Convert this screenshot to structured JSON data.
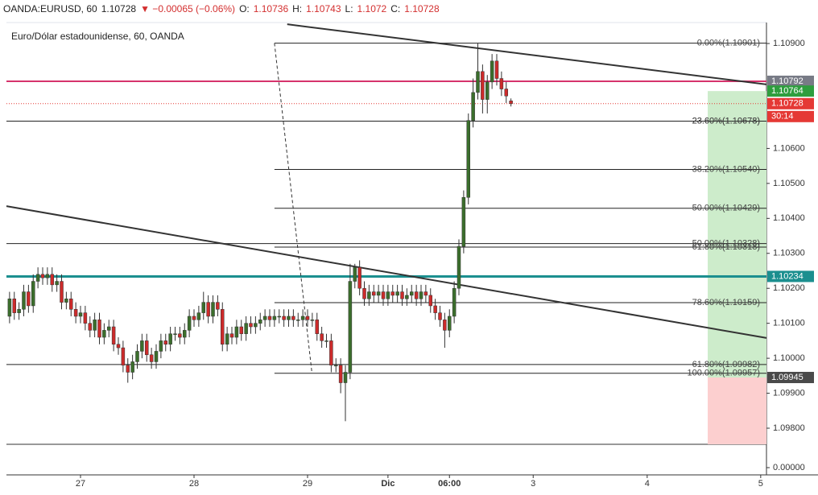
{
  "chart_data": {
    "type": "candlestick",
    "title": "Euro/Dólar estadounidense, 60, OANDA",
    "header": {
      "symbol": "OANDA:EURUSD, 60",
      "change": "▼ −0.00065 (−0.06%)",
      "o": "O:",
      "h": "H:",
      "l": "L:",
      "c": "C:"
    },
    "up_color": "#3b6e2c",
    "down_color": "#cc2b2b",
    "xlim": [
      -15.66,
      145.02
    ],
    "ylim": [
      1.09754,
      1.1096
    ],
    "xticks": [
      {
        "value": 0,
        "label": "27"
      },
      {
        "value": 24,
        "label": "28"
      },
      {
        "value": 48,
        "label": "29"
      },
      {
        "value": 65,
        "label": "Dic",
        "bold": true
      },
      {
        "value": 78,
        "label": "06:00",
        "bold": true
      },
      {
        "value": 95.7,
        "label": "3"
      },
      {
        "value": 119.8,
        "label": "4"
      },
      {
        "value": 143.8,
        "label": "5"
      }
    ],
    "yticks": [
      {
        "value": 1.109,
        "label": "1.10900"
      },
      {
        "value": 1.106,
        "label": "1.10600"
      },
      {
        "value": 1.105,
        "label": "1.10500"
      },
      {
        "value": 1.104,
        "label": "1.10400"
      },
      {
        "value": 1.103,
        "label": "1.10300"
      },
      {
        "value": 1.102,
        "label": "1.10200"
      },
      {
        "value": 1.101,
        "label": "1.10100"
      },
      {
        "value": 1.1,
        "label": "1.10000"
      },
      {
        "value": 1.099,
        "label": "1.09900"
      },
      {
        "value": 1.098,
        "label": "1.09800"
      }
    ],
    "lower_pane_tick": {
      "value": 0,
      "label": "0.00000"
    },
    "countdown": "30:14",
    "x": [
      -15,
      -14,
      -13,
      -12,
      -11,
      -10,
      -9,
      -8,
      -7,
      -6,
      -5,
      -4,
      -3,
      -2,
      -1,
      0,
      1,
      2,
      3,
      4,
      5,
      6,
      7,
      8,
      9,
      10,
      11,
      12,
      13,
      14,
      15,
      16,
      17,
      18,
      19,
      20,
      21,
      22,
      23,
      24,
      25,
      26,
      27,
      28,
      29,
      30,
      31,
      32,
      33,
      34,
      35,
      36,
      37,
      38,
      39,
      40,
      41,
      42,
      43,
      44,
      45,
      46,
      47,
      48,
      49,
      50,
      51,
      52,
      53,
      54,
      55,
      56,
      57,
      58,
      59,
      60,
      61,
      62,
      63,
      64,
      65,
      66,
      67,
      68,
      69,
      70,
      71,
      72,
      73,
      74,
      75,
      76,
      77,
      78,
      79,
      80,
      81,
      82,
      83,
      84,
      85,
      86,
      87,
      88,
      89,
      90,
      91
    ],
    "open": [
      1.1012,
      1.1017,
      1.1013,
      1.1014,
      1.1019,
      1.1015,
      1.1022,
      1.1024,
      1.1023,
      1.1024,
      1.1021,
      1.1022,
      1.1016,
      1.1017,
      1.1014,
      1.1012,
      1.1013,
      1.101,
      1.1008,
      1.1011,
      1.1006,
      1.1008,
      1.1009,
      1.1004,
      1.1003,
      1.0998,
      1.0996,
      1.0999,
      1.1002,
      1.1005,
      1.1001,
      1.0999,
      1.1002,
      1.1005,
      1.1004,
      1.1007,
      1.1007,
      1.1006,
      1.1008,
      1.1012,
      1.1011,
      1.1013,
      1.1016,
      1.1012,
      1.1016,
      1.1014,
      1.1004,
      1.1007,
      1.1006,
      1.1009,
      1.1007,
      1.101,
      1.1009,
      1.101,
      1.1011,
      1.1012,
      1.1011,
      1.1012,
      1.1012,
      1.1011,
      1.1012,
      1.1011,
      1.1011,
      1.1012,
      1.1011,
      1.1011,
      1.1007,
      1.1005,
      1.1005,
      1.0998,
      1.0998,
      1.0993,
      1.0996,
      1.1022,
      1.1026,
      1.102,
      1.1017,
      1.1019,
      1.1018,
      1.1019,
      1.1017,
      1.1019,
      1.1018,
      1.1019,
      1.1017,
      1.1018,
      1.1019,
      1.1017,
      1.1019,
      1.1018,
      1.1015,
      1.1013,
      1.1011,
      1.1008,
      1.1012,
      1.102,
      1.1032,
      1.1046,
      1.1068,
      1.1076,
      1.1082,
      1.1074,
      1.1079,
      1.1085,
      1.108,
      1.1077,
      1.10736
    ],
    "high": [
      1.1019,
      1.1019,
      1.1016,
      1.1021,
      1.1021,
      1.1024,
      1.1026,
      1.1026,
      1.1026,
      1.1026,
      1.1024,
      1.1024,
      1.1019,
      1.1019,
      1.1016,
      1.1015,
      1.1015,
      1.1012,
      1.1013,
      1.1013,
      1.101,
      1.1011,
      1.1011,
      1.1006,
      1.1005,
      1.1,
      1.1001,
      1.1004,
      1.1007,
      1.1007,
      1.1003,
      1.1004,
      1.1007,
      1.1007,
      1.1009,
      1.1009,
      1.1009,
      1.101,
      1.1014,
      1.1014,
      1.1015,
      1.1019,
      1.1018,
      1.1018,
      1.1018,
      1.1016,
      1.1009,
      1.1009,
      1.1011,
      1.1011,
      1.1012,
      1.1012,
      1.1012,
      1.1013,
      1.1014,
      1.1014,
      1.1014,
      1.1014,
      1.1014,
      1.1014,
      1.1014,
      1.1013,
      1.1014,
      1.1014,
      1.1013,
      1.1013,
      1.1009,
      1.1007,
      1.1007,
      1.1,
      1.1,
      1.0998,
      1.1027,
      1.1027,
      1.1028,
      1.1022,
      1.1021,
      1.1021,
      1.1021,
      1.1021,
      1.1021,
      1.1021,
      1.1021,
      1.1021,
      1.102,
      1.1021,
      1.1021,
      1.1021,
      1.1021,
      1.102,
      1.1017,
      1.1015,
      1.1013,
      1.1014,
      1.1022,
      1.1034,
      1.1048,
      1.107,
      1.108,
      1.109,
      1.1084,
      1.1081,
      1.1087,
      1.1087,
      1.1082,
      1.1079,
      1.10743
    ],
    "low": [
      1.101,
      1.1011,
      1.1011,
      1.1012,
      1.1013,
      1.1013,
      1.102,
      1.1021,
      1.1021,
      1.1019,
      1.1019,
      1.1014,
      1.1014,
      1.1012,
      1.101,
      1.101,
      1.1008,
      1.1006,
      1.1006,
      1.1004,
      1.1004,
      1.1006,
      1.1002,
      1.1001,
      1.0996,
      1.0993,
      1.0994,
      1.0997,
      1.1,
      1.0999,
      1.0997,
      1.0997,
      1.1,
      1.1002,
      1.1002,
      1.1005,
      1.1004,
      1.1004,
      1.1006,
      1.1009,
      1.1009,
      1.1011,
      1.101,
      1.101,
      1.1012,
      1.1002,
      1.1002,
      1.1004,
      1.1004,
      1.1005,
      1.1005,
      1.1007,
      1.1007,
      1.1008,
      1.1009,
      1.1009,
      1.1009,
      1.101,
      1.1009,
      1.1009,
      1.1009,
      1.1009,
      1.1009,
      1.1009,
      1.1009,
      1.1005,
      1.1003,
      1.1003,
      1.0996,
      1.0996,
      1.099,
      1.0982,
      1.0994,
      1.102,
      1.1018,
      1.1015,
      1.1015,
      1.1016,
      1.1016,
      1.1015,
      1.1015,
      1.1016,
      1.1016,
      1.1015,
      1.1015,
      1.1016,
      1.1015,
      1.1015,
      1.1016,
      1.1013,
      1.1011,
      1.1009,
      1.1003,
      1.1006,
      1.101,
      1.1018,
      1.103,
      1.1044,
      1.1066,
      1.1074,
      1.107,
      1.107,
      1.1077,
      1.1078,
      1.1075,
      1.1073,
      1.1072
    ],
    "close": [
      1.1017,
      1.1013,
      1.1014,
      1.1019,
      1.1015,
      1.1022,
      1.1024,
      1.1023,
      1.1024,
      1.1021,
      1.1022,
      1.1016,
      1.1017,
      1.1014,
      1.1012,
      1.1013,
      1.101,
      1.1008,
      1.1011,
      1.1006,
      1.1008,
      1.1009,
      1.1004,
      1.1003,
      1.0998,
      1.0996,
      1.0999,
      1.1002,
      1.1005,
      1.1001,
      1.0999,
      1.1002,
      1.1005,
      1.1004,
      1.1007,
      1.1007,
      1.1006,
      1.1008,
      1.1012,
      1.1011,
      1.1013,
      1.1016,
      1.1012,
      1.1016,
      1.1014,
      1.1004,
      1.1007,
      1.1006,
      1.1009,
      1.1007,
      1.101,
      1.1009,
      1.101,
      1.1011,
      1.1012,
      1.1011,
      1.1012,
      1.1012,
      1.1011,
      1.1012,
      1.1011,
      1.1011,
      1.1012,
      1.1011,
      1.1011,
      1.1007,
      1.1005,
      1.1005,
      1.0998,
      1.0998,
      1.0993,
      1.0996,
      1.1022,
      1.1026,
      1.102,
      1.1017,
      1.1019,
      1.1018,
      1.1019,
      1.1017,
      1.1019,
      1.1018,
      1.1019,
      1.1017,
      1.1018,
      1.1019,
      1.1017,
      1.1019,
      1.1018,
      1.1015,
      1.1013,
      1.1011,
      1.1008,
      1.1012,
      1.102,
      1.1032,
      1.1046,
      1.1068,
      1.1076,
      1.1082,
      1.1074,
      1.1079,
      1.1085,
      1.108,
      1.1077,
      1.1075,
      1.10728
    ],
    "fib": [
      {
        "start": 41,
        "levels": [
          {
            "value": 1.10901,
            "label": "0.00%(1.10901)"
          },
          {
            "value": 1.10678,
            "label": "23.60%(1.10678)"
          },
          {
            "value": 1.1054,
            "label": "38.20%(1.10540)"
          },
          {
            "value": 1.10429,
            "label": "50.00%(1.10429)"
          },
          {
            "value": 1.10318,
            "label": "61.80%(1.10318)"
          },
          {
            "value": 1.10159,
            "label": "78.60%(1.10159)"
          },
          {
            "value": 1.09957,
            "label": "100.00%(1.09957)"
          }
        ]
      },
      {
        "levels": [
          {
            "value": 1.10678,
            "label": "23.60%(1.10678)"
          },
          {
            "value": 1.10328,
            "label": "50.00%(1.10328)"
          },
          {
            "value": 1.09982,
            "label": "61.80%(1.09982)"
          }
        ]
      }
    ],
    "levels": [
      {
        "value": 1.10792,
        "color": "#d6336c",
        "width": 2,
        "box": "#787b86"
      },
      {
        "value": 1.10234,
        "color": "#1b8f8f",
        "width": 3,
        "box": "#1b8f8f"
      }
    ],
    "last_color": "#e53935",
    "position": {
      "start": 132.6,
      "target": 1.10764,
      "entry": 1.09945,
      "stop": 1.09754,
      "profit_color": "#cdeccb",
      "loss_color": "#fccfcf",
      "target_color": "#2e9e3e",
      "entry_color": "#4a4a4a"
    },
    "trendlines": [
      {
        "x": [
          43.7,
          145.02
        ],
        "y": [
          1.10955,
          1.10783
        ],
        "dash": false
      },
      {
        "x": [
          -15.66,
          145.02
        ],
        "y": [
          1.10435,
          1.10058
        ],
        "dash": false
      },
      {
        "x": [
          41,
          48.9
        ],
        "y": [
          1.10901,
          1.09961
        ],
        "dash": true
      }
    ]
  }
}
